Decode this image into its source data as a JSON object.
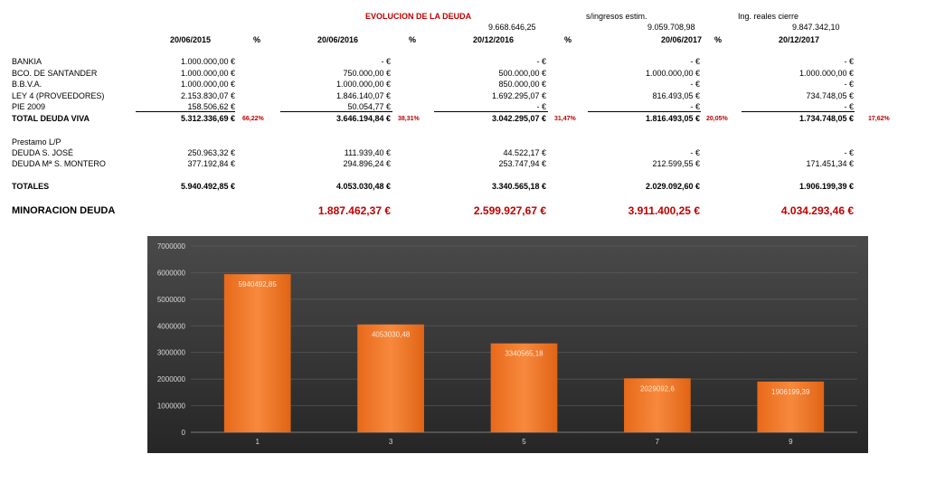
{
  "header": {
    "title": "EVOLUCION DE LA DEUDA",
    "income_value": "9.668.646,25",
    "income_label": "s/ingresos estim.",
    "est_value": "9.059.708,98",
    "real_label": "Ing. reales cierre",
    "real_value": "9.847.342,10"
  },
  "columns": [
    "20/06/2015",
    "20/06/2016",
    "20/12/2016",
    "20/06/2017",
    "20/12/2017"
  ],
  "pct_label": "%",
  "rows": [
    {
      "label": "BANKIA",
      "values": [
        "1.000.000,00 €",
        "-    €",
        "-    €",
        "-    €",
        "-    €"
      ]
    },
    {
      "label": "BCO. DE SANTANDER",
      "values": [
        "1.000.000,00 €",
        "750.000,00 €",
        "500.000,00 €",
        "1.000.000,00 €",
        "1.000.000,00 €"
      ]
    },
    {
      "label": "B.B.V.A.",
      "values": [
        "1.000.000,00 €",
        "1.000.000,00 €",
        "850.000,00 €",
        "-    €",
        "-    €"
      ]
    },
    {
      "label": "LEY 4 (PROVEEDORES)",
      "values": [
        "2.153.830,07 €",
        "1.846.140,07 €",
        "1.692.295,07 €",
        "816.493,05 €",
        "734.748,05 €"
      ]
    },
    {
      "label": "PIE 2009",
      "values": [
        "158.506,62 €",
        "50.054,77 €",
        "-    €",
        "-    €",
        "-    €"
      ]
    }
  ],
  "total_viva": {
    "label": "TOTAL DEUDA VIVA",
    "values": [
      "5.312.336,69 €",
      "3.646.194,84 €",
      "3.042.295,07 €",
      "1.816.493,05 €",
      "1.734.748,05 €"
    ],
    "pcts": [
      "66,22%",
      "38,31%",
      "31,47%",
      "20,05%",
      "17,62%"
    ]
  },
  "prestamo_label": "Prestamo L/P",
  "lp_rows": [
    {
      "label": "DEUDA S. JOSÉ",
      "values": [
        "250.963,32 €",
        "111.939,40 €",
        "44.522,17 €",
        "-    €",
        "-    €"
      ]
    },
    {
      "label": "DEUDA Mª S. MONTERO",
      "values": [
        "377.192,84 €",
        "294.896,24 €",
        "253.747,94 €",
        "212.599,55 €",
        "171.451,34 €"
      ]
    }
  ],
  "totales": {
    "label": "TOTALES",
    "values": [
      "5.940.492,85 €",
      "4.053.030,48 €",
      "3.340.565,18 €",
      "2.029.092,60 €",
      "1.906.199,39 €"
    ]
  },
  "minoracion": {
    "label": "MINORACION DEUDA",
    "values": [
      "1.887.462,37 €",
      "2.599.927,67 €",
      "3.911.400,25 €",
      "4.034.293,46 €"
    ]
  },
  "chart_data": {
    "type": "bar",
    "categories": [
      "1",
      "3",
      "5",
      "7",
      "9"
    ],
    "values": [
      5940492.85,
      4053030.48,
      3340565.18,
      2029092.6,
      1906199.39
    ],
    "value_labels": [
      "5940492,85",
      "4053030,48",
      "3340565,18",
      "2029092,6",
      "1906199,39"
    ],
    "yticks": [
      "0",
      "1000000",
      "2000000",
      "3000000",
      "4000000",
      "5000000",
      "6000000",
      "7000000"
    ],
    "ylim": [
      0,
      7000000
    ],
    "grid": true,
    "bar_color": "#f07a2a",
    "background": "#3a3a3a",
    "title": "",
    "xlabel": "",
    "ylabel": ""
  }
}
